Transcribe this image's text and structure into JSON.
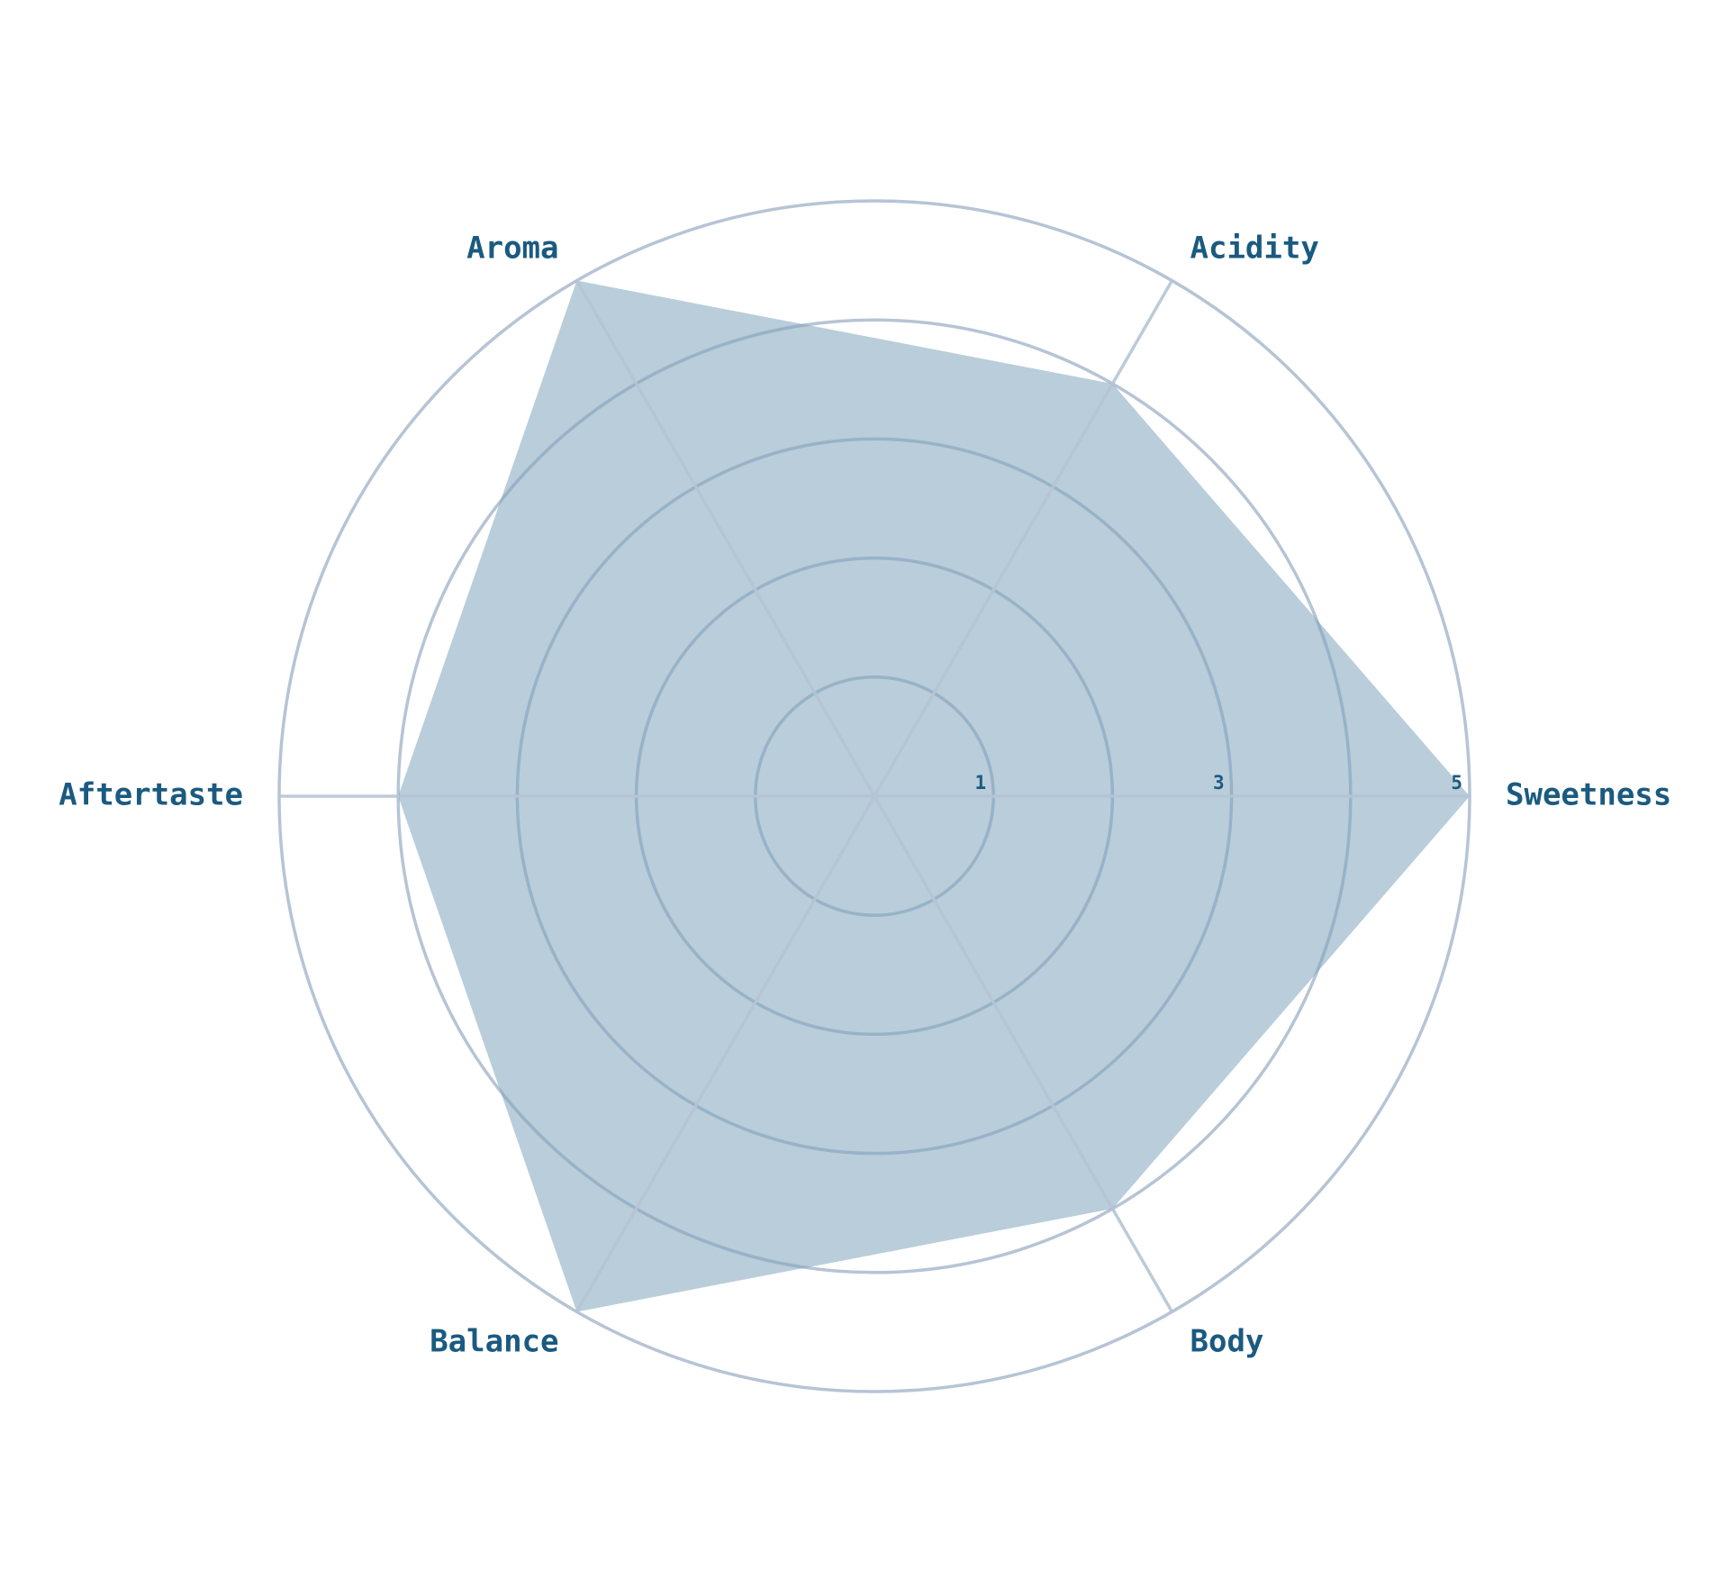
{
  "chart_data": {
    "type": "radar",
    "categories": [
      "Sweetness",
      "Acidity",
      "Aroma",
      "Aftertaste",
      "Balance",
      "Body"
    ],
    "series": [
      {
        "values": [
          5,
          4,
          5,
          4,
          5,
          4
        ]
      }
    ],
    "rlim": [
      0,
      5
    ],
    "grid_rings": [
      1,
      2,
      3,
      4,
      5
    ],
    "tick_labels": [
      "1",
      "3",
      "5"
    ],
    "tick_values": [
      1,
      3,
      5
    ],
    "grid": true,
    "colors": {
      "fill": "#7fa4bb",
      "grid": "#b6c4d5",
      "text": "#1b5a80"
    }
  }
}
